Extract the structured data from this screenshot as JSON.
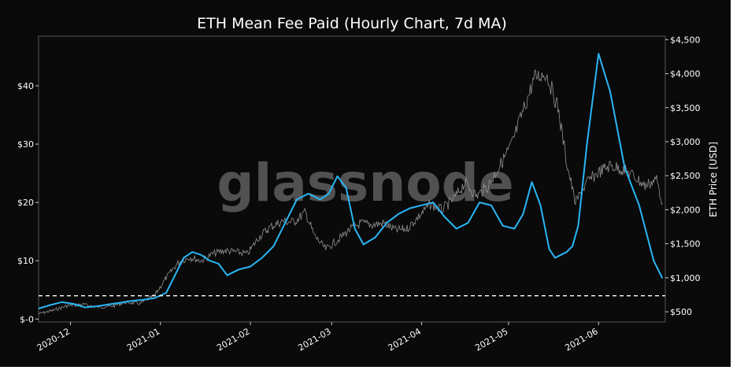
{
  "chart_data": {
    "type": "line",
    "title": "ETH Mean Fee Paid (Hourly Chart, 7d MA)",
    "watermark": "glassnode",
    "xlabel": "",
    "ylabel_left": "",
    "ylabel_right": "ETH Price [USD]",
    "x_range": [
      "2020-11-20",
      "2021-06-24"
    ],
    "ylim_left": [
      -0.5,
      48.5
    ],
    "ylim_right": [
      350,
      4550
    ],
    "x_ticks": [
      {
        "date": "2020-12-01",
        "label": "2020-12"
      },
      {
        "date": "2021-01-01",
        "label": "2021-01"
      },
      {
        "date": "2021-02-01",
        "label": "2021-02"
      },
      {
        "date": "2021-03-01",
        "label": "2021-03"
      },
      {
        "date": "2021-04-01",
        "label": "2021-04"
      },
      {
        "date": "2021-05-01",
        "label": "2021-05"
      },
      {
        "date": "2021-06-01",
        "label": "2021-06"
      }
    ],
    "y_left_ticks": [
      {
        "value": 0,
        "label": "$-0"
      },
      {
        "value": 10,
        "label": "$10"
      },
      {
        "value": 20,
        "label": "$20"
      },
      {
        "value": 30,
        "label": "$30"
      },
      {
        "value": 40,
        "label": "$40"
      }
    ],
    "y_right_ticks": [
      {
        "value": 500,
        "label": "$500"
      },
      {
        "value": 1000,
        "label": "$1,000"
      },
      {
        "value": 1500,
        "label": "$1,500"
      },
      {
        "value": 2000,
        "label": "$2,000"
      },
      {
        "value": 2500,
        "label": "$2,500"
      },
      {
        "value": 3000,
        "label": "$3,000"
      },
      {
        "value": 3500,
        "label": "$3,500"
      },
      {
        "value": 4000,
        "label": "$4,000"
      },
      {
        "value": 4500,
        "label": "$4,500"
      }
    ],
    "reference_line": {
      "axis": "left",
      "value": 4,
      "style": "dashed",
      "color": "#ffffff"
    },
    "series": [
      {
        "axis": "left",
        "color": "#29b6f6",
        "x": [
          "2020-11-20",
          "2020-11-24",
          "2020-11-28",
          "2020-12-02",
          "2020-12-06",
          "2020-12-10",
          "2020-12-14",
          "2020-12-18",
          "2020-12-22",
          "2020-12-26",
          "2020-12-30",
          "2021-01-03",
          "2021-01-06",
          "2021-01-09",
          "2021-01-12",
          "2021-01-15",
          "2021-01-18",
          "2021-01-21",
          "2021-01-24",
          "2021-01-28",
          "2021-02-01",
          "2021-02-05",
          "2021-02-09",
          "2021-02-13",
          "2021-02-17",
          "2021-02-21",
          "2021-02-25",
          "2021-02-28",
          "2021-03-03",
          "2021-03-06",
          "2021-03-09",
          "2021-03-12",
          "2021-03-16",
          "2021-03-20",
          "2021-03-24",
          "2021-03-28",
          "2021-04-01",
          "2021-04-05",
          "2021-04-09",
          "2021-04-13",
          "2021-04-17",
          "2021-04-21",
          "2021-04-25",
          "2021-04-29",
          "2021-05-03",
          "2021-05-06",
          "2021-05-09",
          "2021-05-12",
          "2021-05-15",
          "2021-05-17",
          "2021-05-19",
          "2021-05-21",
          "2021-05-23",
          "2021-05-25",
          "2021-05-28",
          "2021-06-01",
          "2021-06-05",
          "2021-06-10",
          "2021-06-15",
          "2021-06-20",
          "2021-06-23"
        ],
        "values": [
          1.8,
          2.4,
          2.9,
          2.6,
          2.0,
          2.2,
          2.5,
          2.8,
          3.1,
          3.3,
          3.6,
          4.5,
          7.5,
          10.5,
          11.5,
          11.0,
          10.0,
          9.5,
          7.5,
          8.5,
          9.0,
          10.5,
          12.5,
          16.5,
          20.5,
          21.5,
          20.5,
          21.5,
          24.5,
          22.5,
          15.5,
          12.8,
          14.0,
          16.5,
          18.0,
          19.0,
          19.5,
          20.0,
          17.5,
          15.5,
          16.5,
          20.0,
          19.5,
          16.0,
          15.5,
          18.0,
          23.5,
          19.5,
          12.0,
          10.5,
          11.0,
          11.5,
          12.5,
          16.0,
          30.0,
          45.5,
          39.0,
          26.0,
          19.5,
          10.0,
          7.0
        ]
      },
      {
        "axis": "right",
        "color": "#9e9e9e",
        "x": [
          "2020-11-20",
          "2020-11-25",
          "2020-11-30",
          "2020-12-05",
          "2020-12-10",
          "2020-12-15",
          "2020-12-20",
          "2020-12-25",
          "2020-12-30",
          "2021-01-03",
          "2021-01-07",
          "2021-01-11",
          "2021-01-15",
          "2021-01-19",
          "2021-01-23",
          "2021-01-27",
          "2021-01-31",
          "2021-02-04",
          "2021-02-08",
          "2021-02-12",
          "2021-02-16",
          "2021-02-20",
          "2021-02-23",
          "2021-02-27",
          "2021-03-03",
          "2021-03-07",
          "2021-03-11",
          "2021-03-15",
          "2021-03-19",
          "2021-03-23",
          "2021-03-27",
          "2021-03-31",
          "2021-04-04",
          "2021-04-08",
          "2021-04-12",
          "2021-04-16",
          "2021-04-20",
          "2021-04-24",
          "2021-04-28",
          "2021-05-02",
          "2021-05-06",
          "2021-05-10",
          "2021-05-14",
          "2021-05-18",
          "2021-05-21",
          "2021-05-24",
          "2021-05-28",
          "2021-06-01",
          "2021-06-05",
          "2021-06-09",
          "2021-06-13",
          "2021-06-17",
          "2021-06-21",
          "2021-06-23"
        ],
        "values": [
          470,
          520,
          590,
          610,
          570,
          580,
          640,
          620,
          740,
          1000,
          1220,
          1300,
          1250,
          1350,
          1400,
          1380,
          1350,
          1600,
          1750,
          1830,
          1820,
          1960,
          1620,
          1420,
          1550,
          1700,
          1800,
          1780,
          1800,
          1700,
          1720,
          1900,
          2080,
          2000,
          2150,
          2400,
          2200,
          2350,
          2650,
          2950,
          3450,
          3950,
          4000,
          3500,
          2700,
          2100,
          2400,
          2550,
          2650,
          2600,
          2500,
          2350,
          2450,
          2100
        ]
      }
    ]
  }
}
